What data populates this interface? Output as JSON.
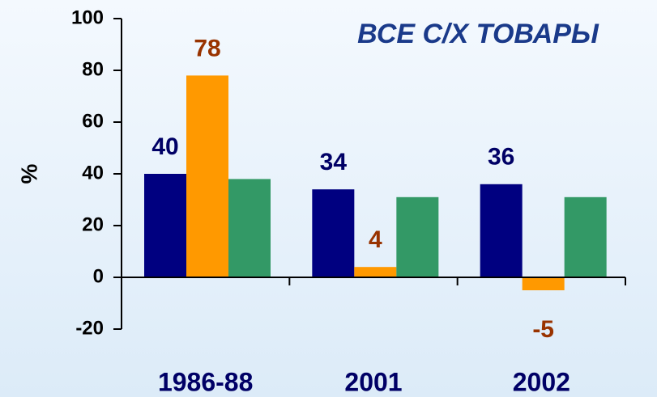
{
  "chart_data": {
    "type": "bar",
    "title": "ВСЕ С/Х ТОВАРЫ",
    "y_label": "%",
    "categories": [
      "1986-88",
      "2001",
      "2002"
    ],
    "series": [
      {
        "color": "#000080",
        "label_color": "#000066",
        "show_labels": true,
        "values": [
          40,
          34,
          36
        ]
      },
      {
        "color": "#ff9900",
        "label_color": "#993300",
        "show_labels": true,
        "values": [
          78,
          4,
          -5
        ]
      },
      {
        "color": "#339966",
        "show_labels": false,
        "values": [
          38,
          31,
          31
        ]
      }
    ],
    "ylim": [
      -20,
      100
    ],
    "yticks": [
      -20,
      0,
      20,
      40,
      60,
      80,
      100
    ],
    "grid": false
  }
}
